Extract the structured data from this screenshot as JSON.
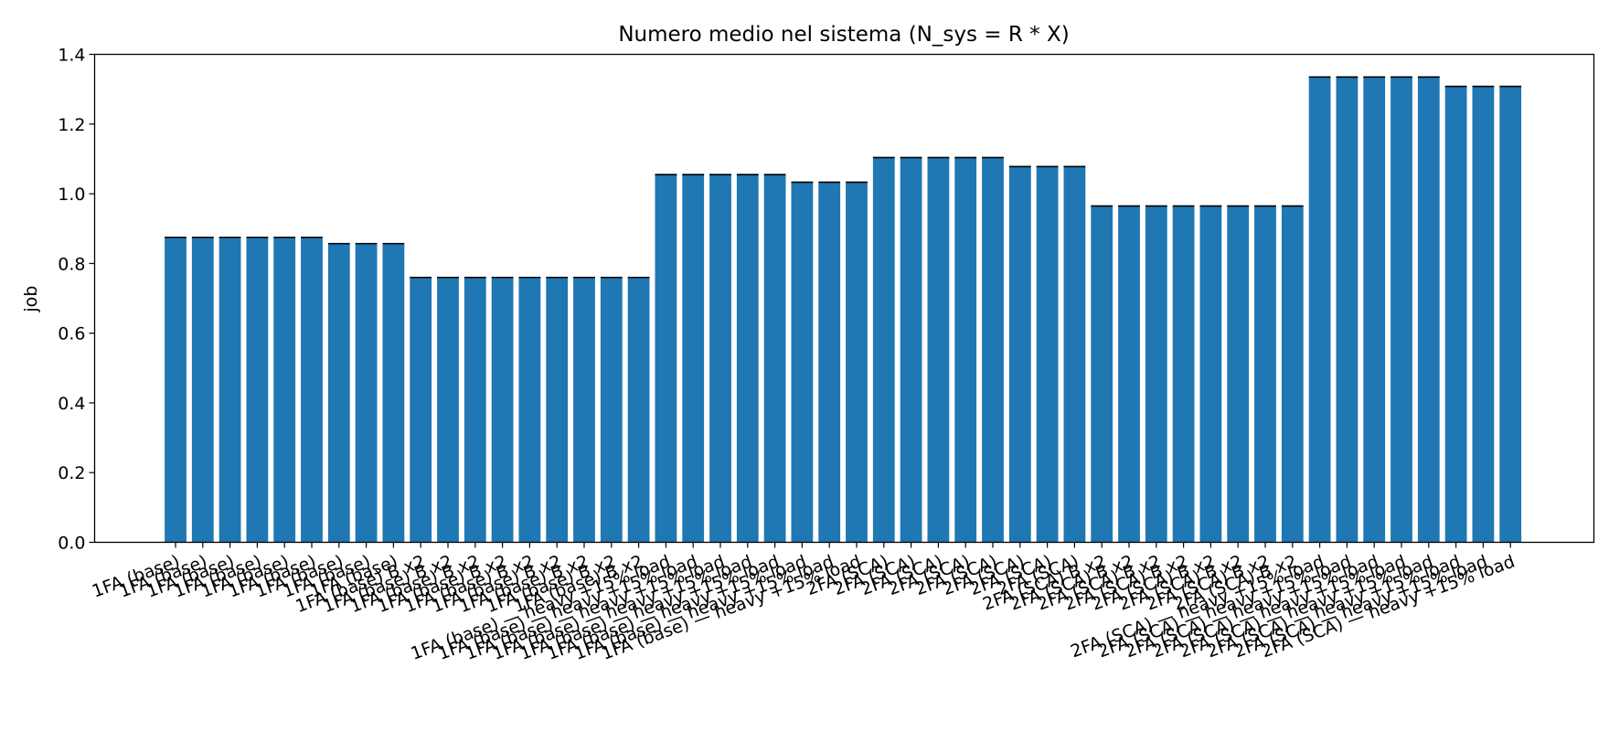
{
  "chart_data": {
    "type": "bar",
    "title": "Numero medio nel sistema (N_sys = R * X)",
    "xlabel": "",
    "ylabel": "job",
    "ylim": [
      0,
      1.4
    ],
    "yticks": [
      "0.0",
      "0.2",
      "0.4",
      "0.6",
      "0.8",
      "1.0",
      "1.2",
      "1.4"
    ],
    "grid": false,
    "bar_color": "#1f77b4",
    "bar_edge_color": "#000000",
    "categories": [
      "1FA (base)",
      "1FA (base)",
      "1FA (base)",
      "1FA (base)",
      "1FA (base)",
      "1FA (base)",
      "1FA (base)",
      "1FA (base)",
      "1FA (base)",
      "1FA (base) B x2",
      "1FA (base) B x2",
      "1FA (base) B x2",
      "1FA (base) B x2",
      "1FA (base) B x2",
      "1FA (base) B x2",
      "1FA (base) B x2",
      "1FA (base) B x2",
      "1FA (base) B x2",
      "1FA (base) — heavy +15% load",
      "1FA (base) — heavy +15% load",
      "1FA (base) — heavy +15% load",
      "1FA (base) — heavy +15% load",
      "1FA (base) — heavy +15% load",
      "1FA (base) — heavy +15% load",
      "1FA (base) — heavy +15% load",
      "1FA (base) — heavy +15% load",
      "2FA (SCA)",
      "2FA (SCA)",
      "2FA (SCA)",
      "2FA (SCA)",
      "2FA (SCA)",
      "2FA (SCA)",
      "2FA (SCA)",
      "2FA (SCA)",
      "2FA (SCA) B x2",
      "2FA (SCA) B x2",
      "2FA (SCA) B x2",
      "2FA (SCA) B x2",
      "2FA (SCA) B x2",
      "2FA (SCA) B x2",
      "2FA (SCA) B x2",
      "2FA (SCA) B x2",
      "2FA (SCA) — heavy +15% load",
      "2FA (SCA) — heavy +15% load",
      "2FA (SCA) — heavy +15% load",
      "2FA (SCA) — heavy +15% load",
      "2FA (SCA) — heavy +15% load",
      "2FA (SCA) — heavy +15% load",
      "2FA (SCA) — heavy +15% load",
      "2FA (SCA) — heavy +15% load"
    ],
    "values": [
      0.875,
      0.875,
      0.875,
      0.875,
      0.875,
      0.875,
      0.857,
      0.857,
      0.857,
      0.76,
      0.76,
      0.76,
      0.76,
      0.76,
      0.76,
      0.76,
      0.76,
      0.76,
      1.055,
      1.055,
      1.055,
      1.055,
      1.055,
      1.033,
      1.033,
      1.033,
      1.104,
      1.104,
      1.104,
      1.104,
      1.104,
      1.078,
      1.078,
      1.078,
      0.965,
      0.965,
      0.965,
      0.965,
      0.965,
      0.965,
      0.965,
      0.965,
      1.335,
      1.335,
      1.335,
      1.335,
      1.335,
      1.308,
      1.308,
      1.308
    ]
  }
}
